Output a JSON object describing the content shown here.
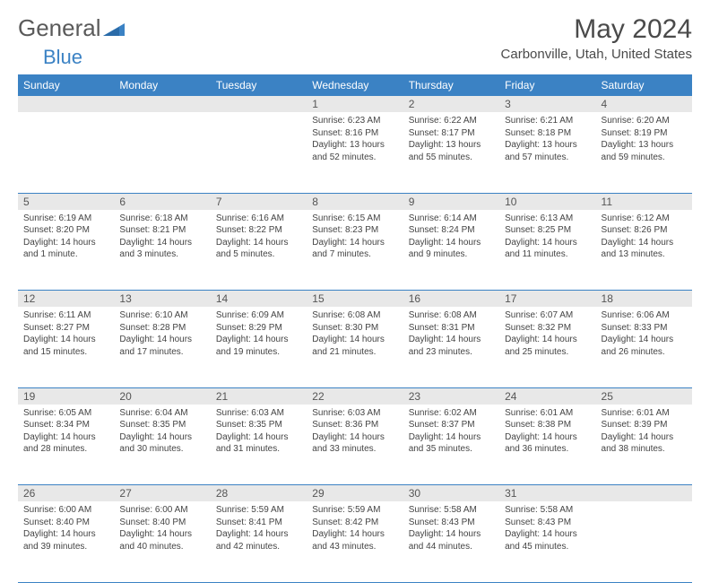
{
  "branding": {
    "logo_text_1": "General",
    "logo_text_2": "Blue",
    "logo_color_gray": "#5a5a5a",
    "logo_color_blue": "#3b82c4"
  },
  "header": {
    "month_title": "May 2024",
    "location": "Carbonville, Utah, United States"
  },
  "colors": {
    "header_bg": "#3b82c4",
    "header_text": "#ffffff",
    "daynum_bg": "#e8e8e8",
    "border": "#3b82c4",
    "text": "#444444"
  },
  "day_headers": [
    "Sunday",
    "Monday",
    "Tuesday",
    "Wednesday",
    "Thursday",
    "Friday",
    "Saturday"
  ],
  "weeks": [
    {
      "nums": [
        "",
        "",
        "",
        "1",
        "2",
        "3",
        "4"
      ],
      "cells": [
        null,
        null,
        null,
        {
          "sunrise": "Sunrise: 6:23 AM",
          "sunset": "Sunset: 8:16 PM",
          "daylight": "Daylight: 13 hours and 52 minutes."
        },
        {
          "sunrise": "Sunrise: 6:22 AM",
          "sunset": "Sunset: 8:17 PM",
          "daylight": "Daylight: 13 hours and 55 minutes."
        },
        {
          "sunrise": "Sunrise: 6:21 AM",
          "sunset": "Sunset: 8:18 PM",
          "daylight": "Daylight: 13 hours and 57 minutes."
        },
        {
          "sunrise": "Sunrise: 6:20 AM",
          "sunset": "Sunset: 8:19 PM",
          "daylight": "Daylight: 13 hours and 59 minutes."
        }
      ]
    },
    {
      "nums": [
        "5",
        "6",
        "7",
        "8",
        "9",
        "10",
        "11"
      ],
      "cells": [
        {
          "sunrise": "Sunrise: 6:19 AM",
          "sunset": "Sunset: 8:20 PM",
          "daylight": "Daylight: 14 hours and 1 minute."
        },
        {
          "sunrise": "Sunrise: 6:18 AM",
          "sunset": "Sunset: 8:21 PM",
          "daylight": "Daylight: 14 hours and 3 minutes."
        },
        {
          "sunrise": "Sunrise: 6:16 AM",
          "sunset": "Sunset: 8:22 PM",
          "daylight": "Daylight: 14 hours and 5 minutes."
        },
        {
          "sunrise": "Sunrise: 6:15 AM",
          "sunset": "Sunset: 8:23 PM",
          "daylight": "Daylight: 14 hours and 7 minutes."
        },
        {
          "sunrise": "Sunrise: 6:14 AM",
          "sunset": "Sunset: 8:24 PM",
          "daylight": "Daylight: 14 hours and 9 minutes."
        },
        {
          "sunrise": "Sunrise: 6:13 AM",
          "sunset": "Sunset: 8:25 PM",
          "daylight": "Daylight: 14 hours and 11 minutes."
        },
        {
          "sunrise": "Sunrise: 6:12 AM",
          "sunset": "Sunset: 8:26 PM",
          "daylight": "Daylight: 14 hours and 13 minutes."
        }
      ]
    },
    {
      "nums": [
        "12",
        "13",
        "14",
        "15",
        "16",
        "17",
        "18"
      ],
      "cells": [
        {
          "sunrise": "Sunrise: 6:11 AM",
          "sunset": "Sunset: 8:27 PM",
          "daylight": "Daylight: 14 hours and 15 minutes."
        },
        {
          "sunrise": "Sunrise: 6:10 AM",
          "sunset": "Sunset: 8:28 PM",
          "daylight": "Daylight: 14 hours and 17 minutes."
        },
        {
          "sunrise": "Sunrise: 6:09 AM",
          "sunset": "Sunset: 8:29 PM",
          "daylight": "Daylight: 14 hours and 19 minutes."
        },
        {
          "sunrise": "Sunrise: 6:08 AM",
          "sunset": "Sunset: 8:30 PM",
          "daylight": "Daylight: 14 hours and 21 minutes."
        },
        {
          "sunrise": "Sunrise: 6:08 AM",
          "sunset": "Sunset: 8:31 PM",
          "daylight": "Daylight: 14 hours and 23 minutes."
        },
        {
          "sunrise": "Sunrise: 6:07 AM",
          "sunset": "Sunset: 8:32 PM",
          "daylight": "Daylight: 14 hours and 25 minutes."
        },
        {
          "sunrise": "Sunrise: 6:06 AM",
          "sunset": "Sunset: 8:33 PM",
          "daylight": "Daylight: 14 hours and 26 minutes."
        }
      ]
    },
    {
      "nums": [
        "19",
        "20",
        "21",
        "22",
        "23",
        "24",
        "25"
      ],
      "cells": [
        {
          "sunrise": "Sunrise: 6:05 AM",
          "sunset": "Sunset: 8:34 PM",
          "daylight": "Daylight: 14 hours and 28 minutes."
        },
        {
          "sunrise": "Sunrise: 6:04 AM",
          "sunset": "Sunset: 8:35 PM",
          "daylight": "Daylight: 14 hours and 30 minutes."
        },
        {
          "sunrise": "Sunrise: 6:03 AM",
          "sunset": "Sunset: 8:35 PM",
          "daylight": "Daylight: 14 hours and 31 minutes."
        },
        {
          "sunrise": "Sunrise: 6:03 AM",
          "sunset": "Sunset: 8:36 PM",
          "daylight": "Daylight: 14 hours and 33 minutes."
        },
        {
          "sunrise": "Sunrise: 6:02 AM",
          "sunset": "Sunset: 8:37 PM",
          "daylight": "Daylight: 14 hours and 35 minutes."
        },
        {
          "sunrise": "Sunrise: 6:01 AM",
          "sunset": "Sunset: 8:38 PM",
          "daylight": "Daylight: 14 hours and 36 minutes."
        },
        {
          "sunrise": "Sunrise: 6:01 AM",
          "sunset": "Sunset: 8:39 PM",
          "daylight": "Daylight: 14 hours and 38 minutes."
        }
      ]
    },
    {
      "nums": [
        "26",
        "27",
        "28",
        "29",
        "30",
        "31",
        ""
      ],
      "cells": [
        {
          "sunrise": "Sunrise: 6:00 AM",
          "sunset": "Sunset: 8:40 PM",
          "daylight": "Daylight: 14 hours and 39 minutes."
        },
        {
          "sunrise": "Sunrise: 6:00 AM",
          "sunset": "Sunset: 8:40 PM",
          "daylight": "Daylight: 14 hours and 40 minutes."
        },
        {
          "sunrise": "Sunrise: 5:59 AM",
          "sunset": "Sunset: 8:41 PM",
          "daylight": "Daylight: 14 hours and 42 minutes."
        },
        {
          "sunrise": "Sunrise: 5:59 AM",
          "sunset": "Sunset: 8:42 PM",
          "daylight": "Daylight: 14 hours and 43 minutes."
        },
        {
          "sunrise": "Sunrise: 5:58 AM",
          "sunset": "Sunset: 8:43 PM",
          "daylight": "Daylight: 14 hours and 44 minutes."
        },
        {
          "sunrise": "Sunrise: 5:58 AM",
          "sunset": "Sunset: 8:43 PM",
          "daylight": "Daylight: 14 hours and 45 minutes."
        },
        null
      ]
    }
  ]
}
